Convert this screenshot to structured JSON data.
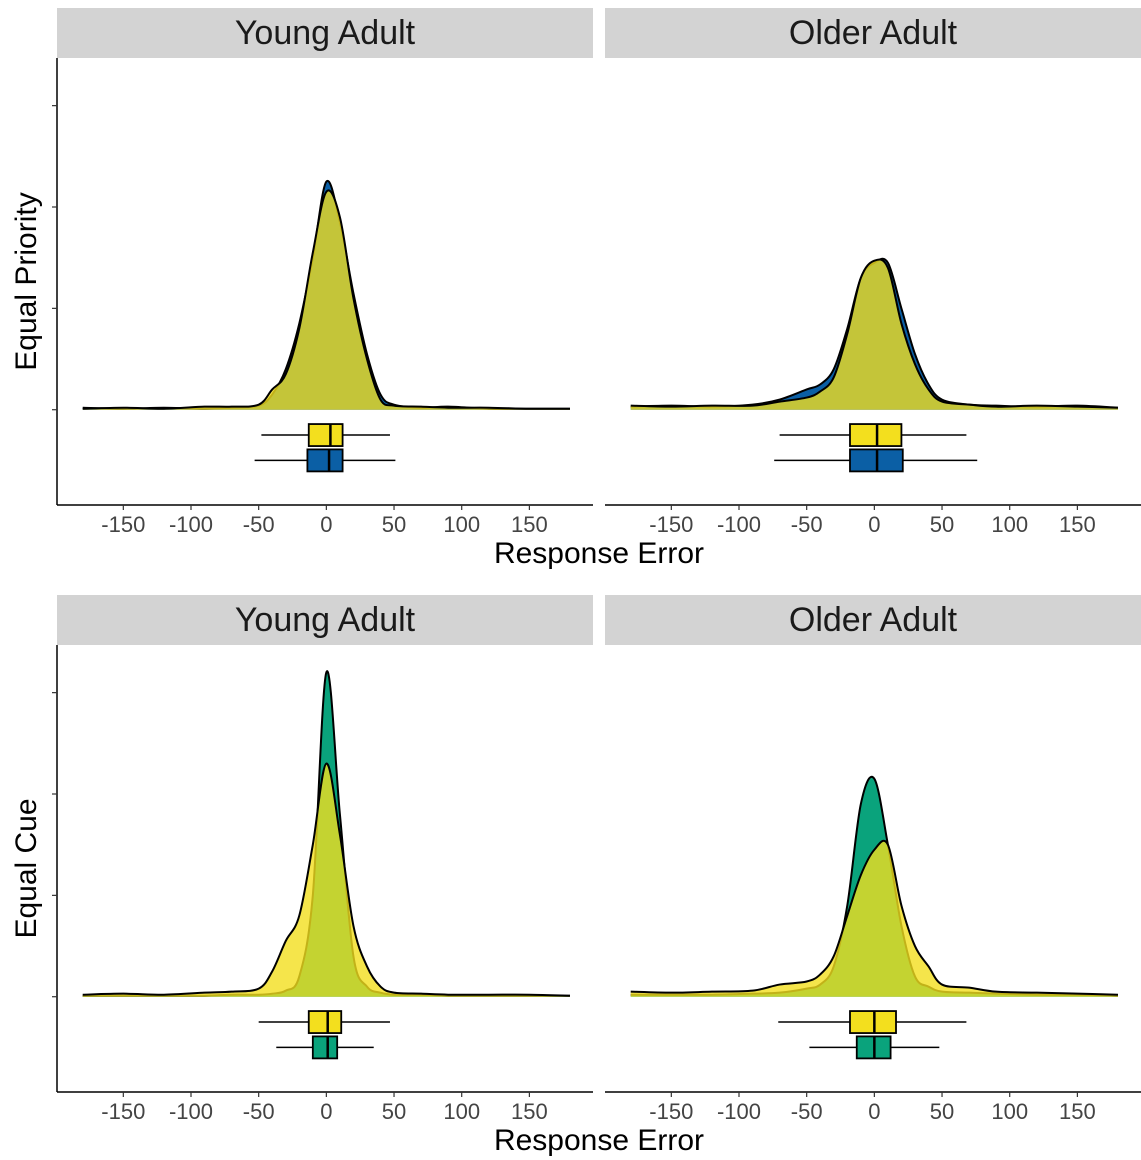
{
  "chart_data": [
    {
      "type": "raincloud",
      "ylabel": "Equal Priority",
      "xlabel": "Response Error",
      "x": [
        -180,
        -150,
        -120,
        -90,
        -70,
        -50,
        -40,
        -30,
        -20,
        -10,
        0,
        10,
        20,
        30,
        40,
        50,
        70,
        90,
        120,
        150,
        180
      ],
      "xlim": [
        -199,
        197
      ],
      "xticks": [
        -150,
        -100,
        -50,
        0,
        50,
        100,
        150
      ],
      "ylim": [
        -0.94,
        3.47
      ],
      "yticks": [
        0,
        1,
        2,
        3
      ],
      "panels": [
        {
          "title": "Young Adult",
          "series": [
            {
              "color": "#0b5fa5",
              "values": [
                0.02,
                0.01,
                0.02,
                0.01,
                0.02,
                0.04,
                0.15,
                0.4,
                0.85,
                1.5,
                2.25,
                1.85,
                1.15,
                0.55,
                0.15,
                0.05,
                0.02,
                0.03,
                0.01,
                0.01,
                0.01
              ],
              "box": {
                "whislo": -53,
                "q1": -14,
                "median": 2,
                "q3": 12,
                "whishi": 51
              }
            },
            {
              "color": "#f3df1e",
              "values": [
                0.01,
                0.02,
                0.01,
                0.03,
                0.03,
                0.05,
                0.2,
                0.35,
                0.8,
                1.55,
                2.15,
                1.9,
                1.1,
                0.5,
                0.1,
                0.04,
                0.03,
                0.02,
                0.02,
                0.01,
                0.01
              ],
              "box": {
                "whislo": -48,
                "q1": -13,
                "median": 3,
                "q3": 12,
                "whishi": 47
              }
            }
          ]
        },
        {
          "title": "Older Adult",
          "series": [
            {
              "color": "#0b5fa5",
              "values": [
                0.03,
                0.04,
                0.03,
                0.05,
                0.1,
                0.2,
                0.25,
                0.4,
                0.8,
                1.3,
                1.45,
                1.45,
                1.0,
                0.55,
                0.25,
                0.1,
                0.05,
                0.04,
                0.03,
                0.04,
                0.02
              ],
              "box": {
                "whislo": -74,
                "q1": -18,
                "median": 2,
                "q3": 21,
                "whishi": 76
              }
            },
            {
              "color": "#f3df1e",
              "values": [
                0.04,
                0.03,
                0.04,
                0.04,
                0.08,
                0.12,
                0.18,
                0.32,
                0.75,
                1.3,
                1.47,
                1.4,
                0.85,
                0.45,
                0.2,
                0.08,
                0.05,
                0.03,
                0.04,
                0.03,
                0.02
              ],
              "box": {
                "whislo": -70,
                "q1": -18,
                "median": 2,
                "q3": 20,
                "whishi": 68
              }
            }
          ]
        }
      ]
    },
    {
      "type": "raincloud",
      "ylabel": "Equal Cue",
      "xlabel": "Response Error",
      "x": [
        -180,
        -150,
        -120,
        -90,
        -70,
        -50,
        -40,
        -30,
        -20,
        -10,
        0,
        10,
        20,
        30,
        40,
        50,
        70,
        90,
        120,
        150,
        180
      ],
      "xlim": [
        -199,
        197
      ],
      "xticks": [
        -150,
        -100,
        -50,
        0,
        50,
        100,
        150
      ],
      "ylim": [
        -0.94,
        3.47
      ],
      "yticks": [
        0,
        1,
        2,
        3
      ],
      "panels": [
        {
          "title": "Young Adult",
          "series": [
            {
              "color": "#0aa37c",
              "values": [
                0.01,
                0.01,
                0.01,
                0.01,
                0.02,
                0.02,
                0.03,
                0.06,
                0.2,
                1.0,
                3.2,
                1.8,
                0.4,
                0.1,
                0.04,
                0.02,
                0.02,
                0.01,
                0.01,
                0.01,
                0.01
              ],
              "box": {
                "whislo": -37,
                "q1": -10,
                "median": 1,
                "q3": 8,
                "whishi": 35
              }
            },
            {
              "color": "#f3df1e",
              "values": [
                0.02,
                0.03,
                0.02,
                0.04,
                0.05,
                0.08,
                0.25,
                0.55,
                0.8,
                1.5,
                2.3,
                1.6,
                0.7,
                0.3,
                0.1,
                0.04,
                0.03,
                0.02,
                0.02,
                0.02,
                0.01
              ],
              "box": {
                "whislo": -50,
                "q1": -13,
                "median": 1,
                "q3": 11,
                "whishi": 47
              }
            }
          ]
        },
        {
          "title": "Older Adult",
          "series": [
            {
              "color": "#0aa37c",
              "values": [
                0.02,
                0.02,
                0.02,
                0.03,
                0.04,
                0.08,
                0.12,
                0.3,
                0.9,
                1.9,
                2.15,
                1.5,
                0.7,
                0.2,
                0.1,
                0.05,
                0.04,
                0.03,
                0.02,
                0.02,
                0.01
              ],
              "box": {
                "whislo": -48,
                "q1": -13,
                "median": 0,
                "q3": 12,
                "whishi": 48
              }
            },
            {
              "color": "#f3df1e",
              "values": [
                0.05,
                0.04,
                0.05,
                0.06,
                0.12,
                0.15,
                0.22,
                0.4,
                0.8,
                1.2,
                1.45,
                1.5,
                0.9,
                0.5,
                0.3,
                0.12,
                0.09,
                0.05,
                0.04,
                0.03,
                0.02
              ],
              "box": {
                "whislo": -71,
                "q1": -18,
                "median": 0,
                "q3": 16,
                "whishi": 68
              }
            }
          ]
        }
      ]
    }
  ]
}
